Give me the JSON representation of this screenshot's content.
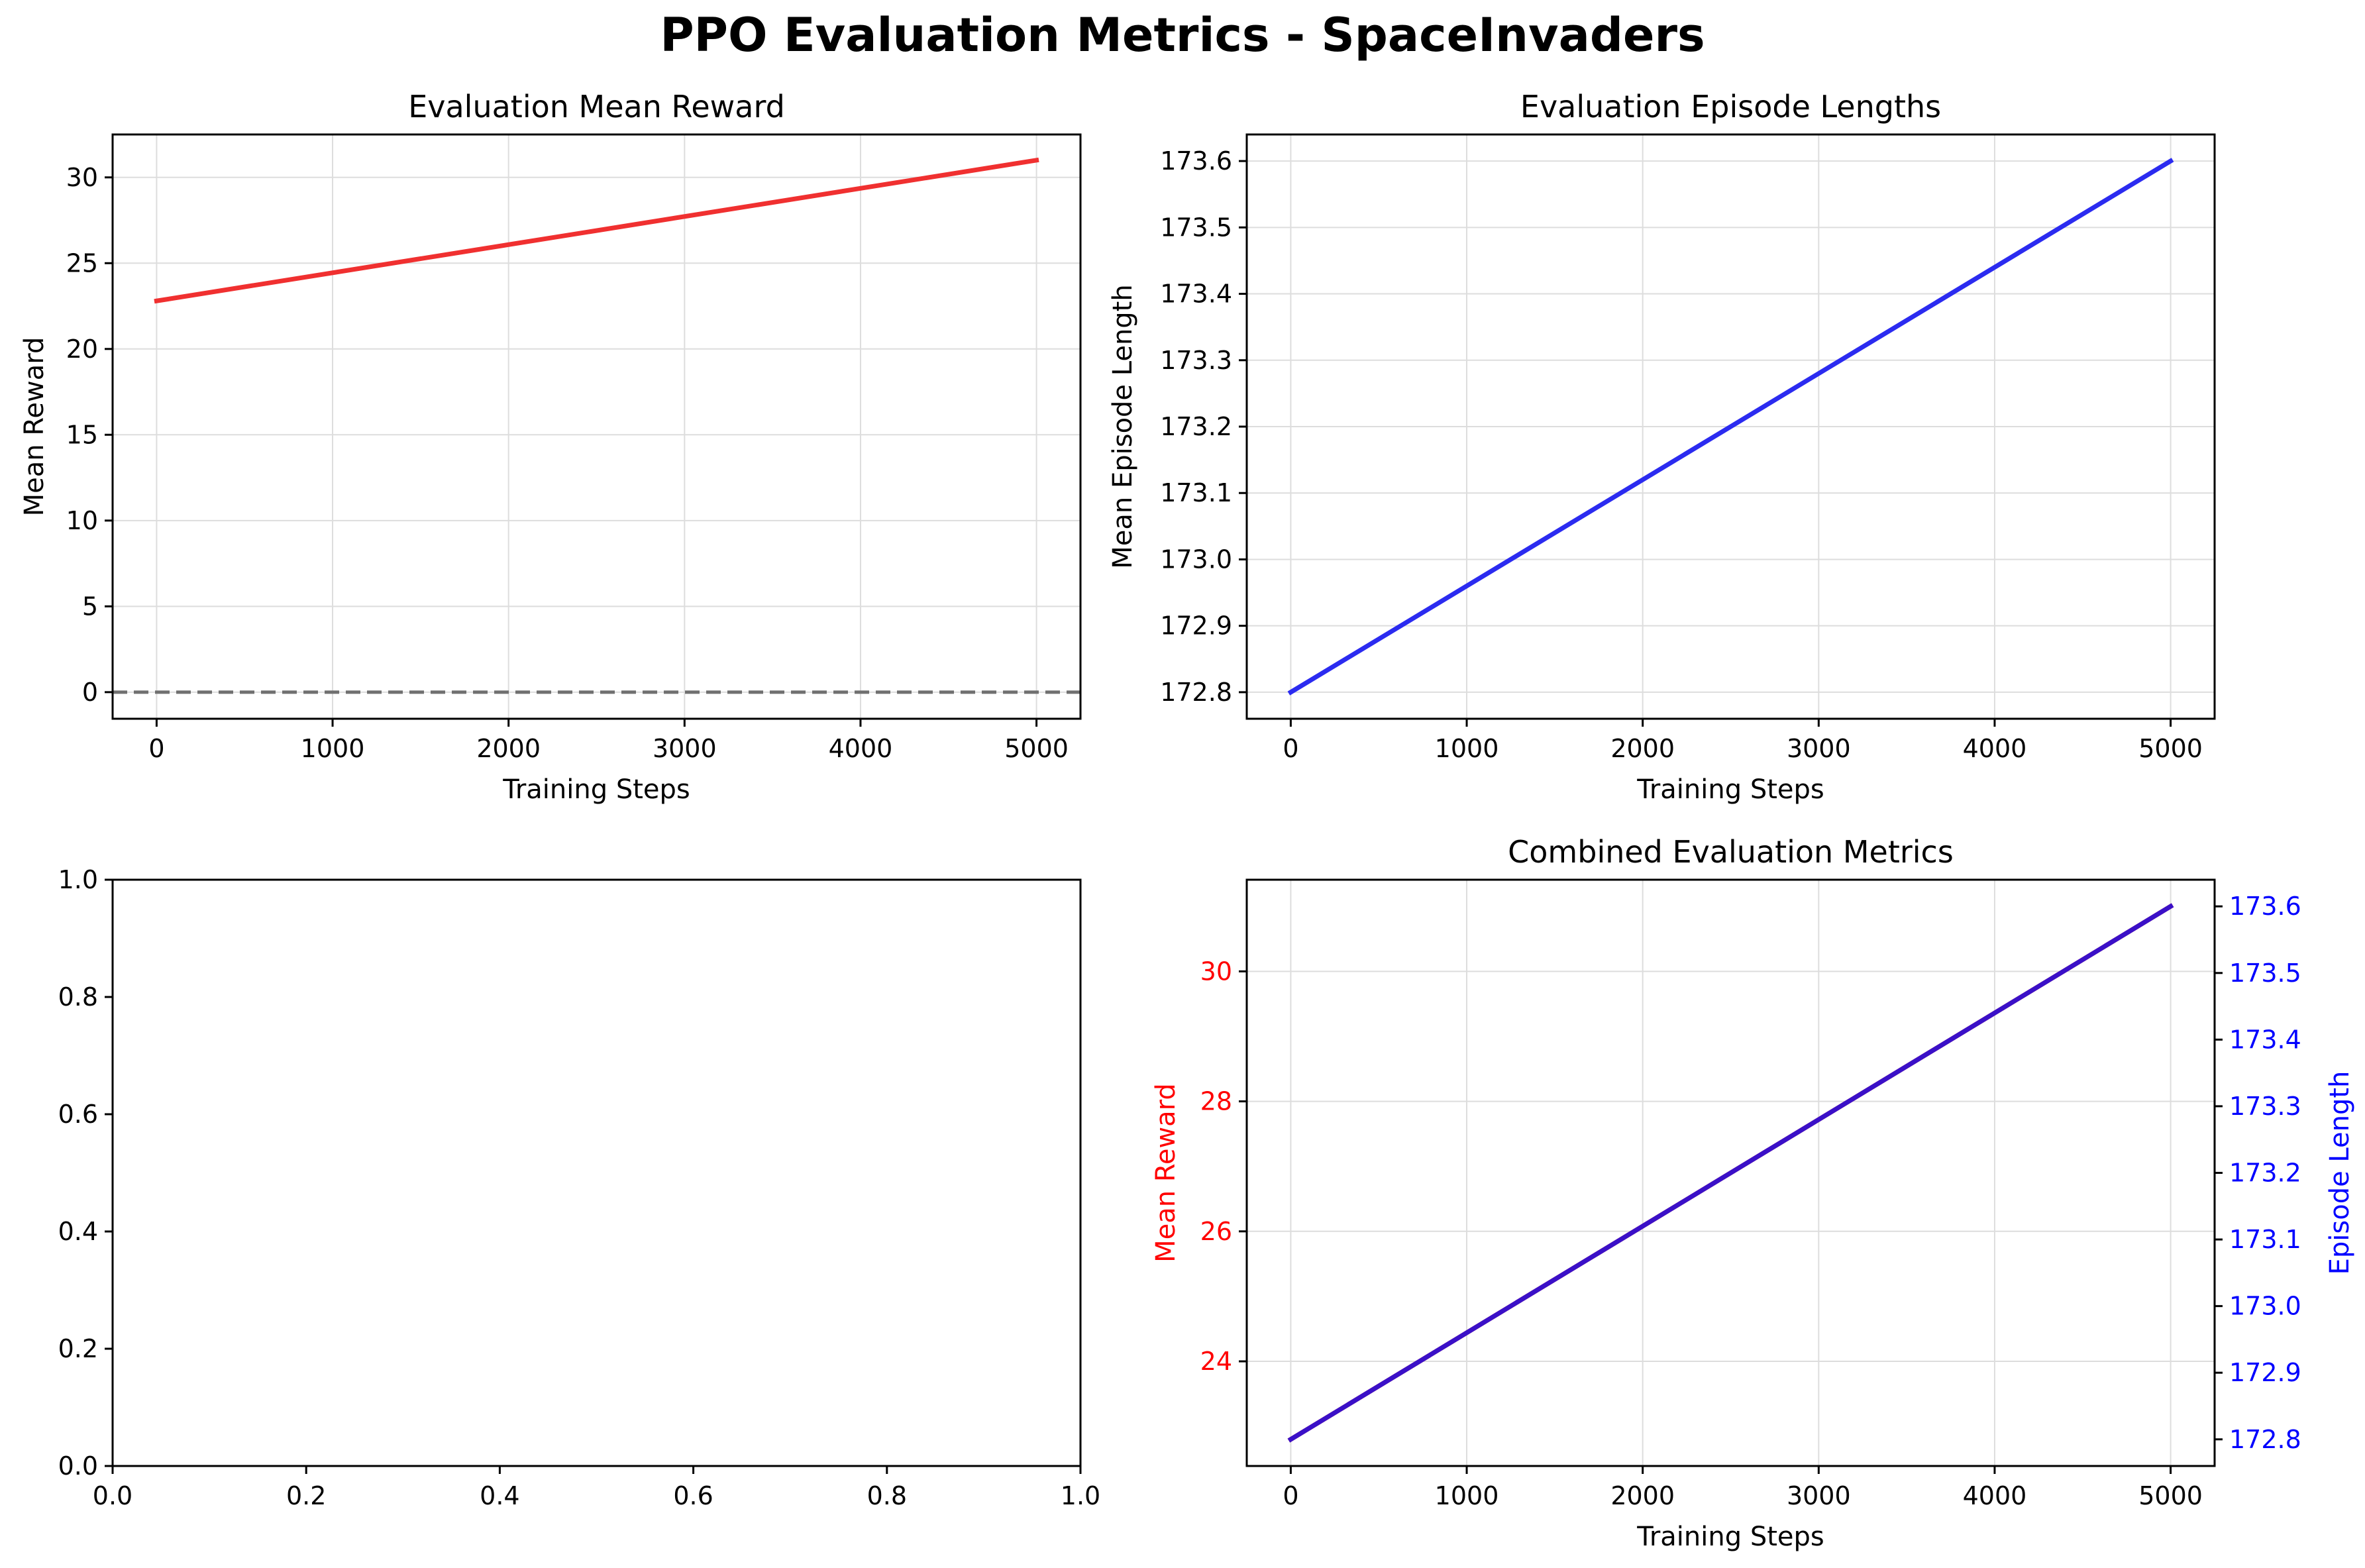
{
  "figure": {
    "title": "PPO Evaluation Metrics - SpaceInvaders"
  },
  "colors": {
    "reward": "#f03030",
    "length": "#2b2bf0",
    "combined": "#3a10c8",
    "zero_line": "#707070",
    "grid": "#dddddd",
    "red_text": "#ff0000",
    "blue_text": "#0000ff"
  },
  "chart_data": [
    {
      "type": "line",
      "title": "Evaluation Mean Reward",
      "xlabel": "Training Steps",
      "ylabel": "Mean Reward",
      "xlim": [
        -250,
        5250
      ],
      "ylim": [
        -1.55,
        32.5
      ],
      "xticks": [
        0,
        1000,
        2000,
        3000,
        4000,
        5000
      ],
      "yticks": [
        0,
        5,
        10,
        15,
        20,
        25,
        30
      ],
      "grid": true,
      "series": [
        {
          "x": [
            0,
            5000
          ],
          "y": [
            22.8,
            31.0
          ]
        }
      ],
      "reference_line": {
        "y": 0,
        "style": "dashed"
      }
    },
    {
      "type": "line",
      "title": "Evaluation Episode Lengths",
      "xlabel": "Training Steps",
      "ylabel": "Mean Episode Length",
      "xlim": [
        -250,
        5250
      ],
      "ylim": [
        172.76,
        173.64
      ],
      "xticks": [
        0,
        1000,
        2000,
        3000,
        4000,
        5000
      ],
      "yticks": [
        172.8,
        172.9,
        173.0,
        173.1,
        173.2,
        173.3,
        173.4,
        173.5,
        173.6
      ],
      "ytick_labels": [
        "172.8",
        "172.9",
        "173.0",
        "173.1",
        "173.2",
        "173.3",
        "173.4",
        "173.5",
        "173.6"
      ],
      "grid": true,
      "series": [
        {
          "x": [
            0,
            5000
          ],
          "y": [
            172.8,
            173.6
          ]
        }
      ]
    },
    {
      "type": "line",
      "title": "",
      "xlim": [
        0,
        1
      ],
      "ylim": [
        0,
        1
      ],
      "xticks": [
        0,
        0.2,
        0.4,
        0.6,
        0.8,
        1
      ],
      "xtick_labels": [
        "0.0",
        "0.2",
        "0.4",
        "0.6",
        "0.8",
        "1.0"
      ],
      "yticks": [
        0,
        0.2,
        0.4,
        0.6,
        0.8,
        1
      ],
      "ytick_labels": [
        "0.0",
        "0.2",
        "0.4",
        "0.6",
        "0.8",
        "1.0"
      ],
      "grid": false,
      "series": []
    },
    {
      "type": "line",
      "title": "Combined Evaluation Metrics",
      "xlabel": "Training Steps",
      "ylabel": "Mean Reward",
      "ylabel_right": "Episode Length",
      "xlim": [
        -250,
        5250
      ],
      "ylim": [
        22.39,
        31.41
      ],
      "ylim_right": [
        172.76,
        173.64
      ],
      "xticks": [
        0,
        1000,
        2000,
        3000,
        4000,
        5000
      ],
      "yticks": [
        24,
        26,
        28,
        30
      ],
      "yticks_right": [
        172.8,
        172.9,
        173.0,
        173.1,
        173.2,
        173.3,
        173.4,
        173.5,
        173.6
      ],
      "ytick_labels_right": [
        "172.8",
        "172.9",
        "173.0",
        "173.1",
        "173.2",
        "173.3",
        "173.4",
        "173.5",
        "173.6"
      ],
      "grid": true,
      "series": [
        {
          "x": [
            0,
            5000
          ],
          "y": [
            22.8,
            31.0
          ],
          "axis": "left"
        },
        {
          "x": [
            0,
            5000
          ],
          "y": [
            172.8,
            173.6
          ],
          "axis": "right"
        }
      ]
    }
  ]
}
